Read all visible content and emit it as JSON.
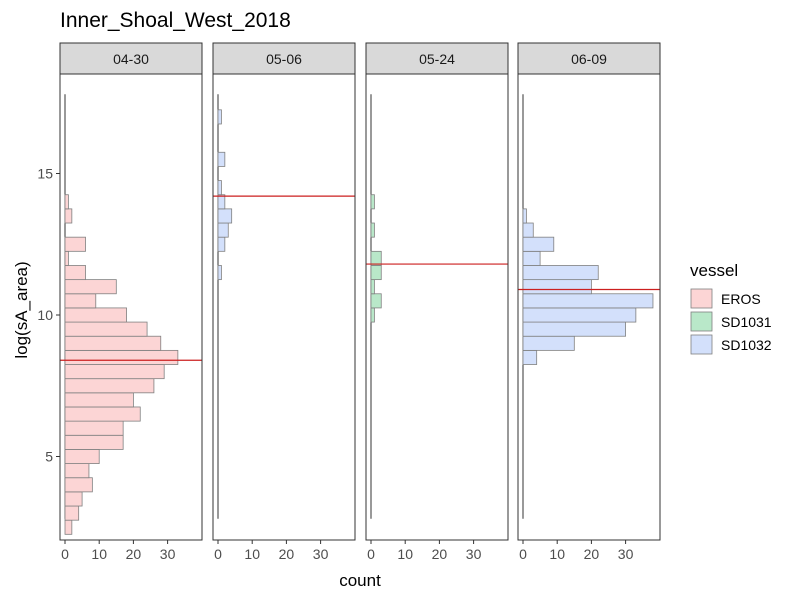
{
  "chart_data": {
    "type": "histogram",
    "title": "Inner_Shoal_West_2018",
    "xlabel": "count",
    "ylabel": "log(sA_area)",
    "xlim": [
      0,
      40
    ],
    "ylim": [
      2,
      18
    ],
    "xticks": [
      0,
      10,
      20,
      30
    ],
    "yticks": [
      5,
      10,
      15
    ],
    "bin_width": 0.5,
    "grid": false,
    "legend": {
      "title": "vessel",
      "position": "right",
      "entries": [
        {
          "label": "EROS",
          "color": "#fcd5d5"
        },
        {
          "label": "SD1031",
          "color": "#b9e8c9"
        },
        {
          "label": "SD1032",
          "color": "#d3e0fb"
        }
      ]
    },
    "panels": [
      {
        "label": "04-30",
        "vessel": "EROS",
        "color": "#fcd5d5",
        "mean_line": 8.4,
        "vline_range": [
          2.8,
          17.8
        ],
        "bins": [
          {
            "y": 2.5,
            "count": 2
          },
          {
            "y": 3.0,
            "count": 4
          },
          {
            "y": 3.5,
            "count": 5
          },
          {
            "y": 4.0,
            "count": 8
          },
          {
            "y": 4.5,
            "count": 7
          },
          {
            "y": 5.0,
            "count": 10
          },
          {
            "y": 5.5,
            "count": 17
          },
          {
            "y": 6.0,
            "count": 17
          },
          {
            "y": 6.5,
            "count": 22
          },
          {
            "y": 7.0,
            "count": 20
          },
          {
            "y": 7.5,
            "count": 26
          },
          {
            "y": 8.0,
            "count": 29
          },
          {
            "y": 8.5,
            "count": 33
          },
          {
            "y": 9.0,
            "count": 28
          },
          {
            "y": 9.5,
            "count": 24
          },
          {
            "y": 10.0,
            "count": 18
          },
          {
            "y": 10.5,
            "count": 9
          },
          {
            "y": 11.0,
            "count": 15
          },
          {
            "y": 11.5,
            "count": 6
          },
          {
            "y": 12.0,
            "count": 1
          },
          {
            "y": 12.5,
            "count": 6
          },
          {
            "y": 13.0,
            "count": 0
          },
          {
            "y": 13.5,
            "count": 2
          },
          {
            "y": 14.0,
            "count": 1
          }
        ]
      },
      {
        "label": "05-06",
        "vessel": "SD1032",
        "color": "#d3e0fb",
        "mean_line": 14.2,
        "vline_range": [
          2.8,
          17.8
        ],
        "bins": [
          {
            "y": 11.5,
            "count": 1
          },
          {
            "y": 12.0,
            "count": 0
          },
          {
            "y": 12.5,
            "count": 2
          },
          {
            "y": 13.0,
            "count": 3
          },
          {
            "y": 13.5,
            "count": 4
          },
          {
            "y": 14.0,
            "count": 2
          },
          {
            "y": 14.5,
            "count": 1
          },
          {
            "y": 15.0,
            "count": 0
          },
          {
            "y": 15.5,
            "count": 2
          },
          {
            "y": 16.0,
            "count": 0
          },
          {
            "y": 16.5,
            "count": 0
          },
          {
            "y": 17.0,
            "count": 1
          }
        ]
      },
      {
        "label": "05-24",
        "vessel": "SD1031",
        "color": "#b9e8c9",
        "mean_line": 11.8,
        "vline_range": [
          2.8,
          17.8
        ],
        "bins": [
          {
            "y": 10.0,
            "count": 1
          },
          {
            "y": 10.5,
            "count": 3
          },
          {
            "y": 11.0,
            "count": 1
          },
          {
            "y": 11.5,
            "count": 3
          },
          {
            "y": 12.0,
            "count": 3
          },
          {
            "y": 12.5,
            "count": 0
          },
          {
            "y": 13.0,
            "count": 1
          },
          {
            "y": 13.5,
            "count": 0
          },
          {
            "y": 14.0,
            "count": 1
          }
        ]
      },
      {
        "label": "06-09",
        "vessel": "SD1032",
        "color": "#d3e0fb",
        "mean_line": 10.9,
        "vline_range": [
          2.8,
          17.8
        ],
        "bins": [
          {
            "y": 8.5,
            "count": 4
          },
          {
            "y": 9.0,
            "count": 15
          },
          {
            "y": 9.5,
            "count": 30
          },
          {
            "y": 10.0,
            "count": 33
          },
          {
            "y": 10.5,
            "count": 38
          },
          {
            "y": 11.0,
            "count": 20
          },
          {
            "y": 11.5,
            "count": 22
          },
          {
            "y": 12.0,
            "count": 5
          },
          {
            "y": 12.5,
            "count": 9
          },
          {
            "y": 13.0,
            "count": 3
          },
          {
            "y": 13.5,
            "count": 1
          }
        ]
      }
    ]
  }
}
